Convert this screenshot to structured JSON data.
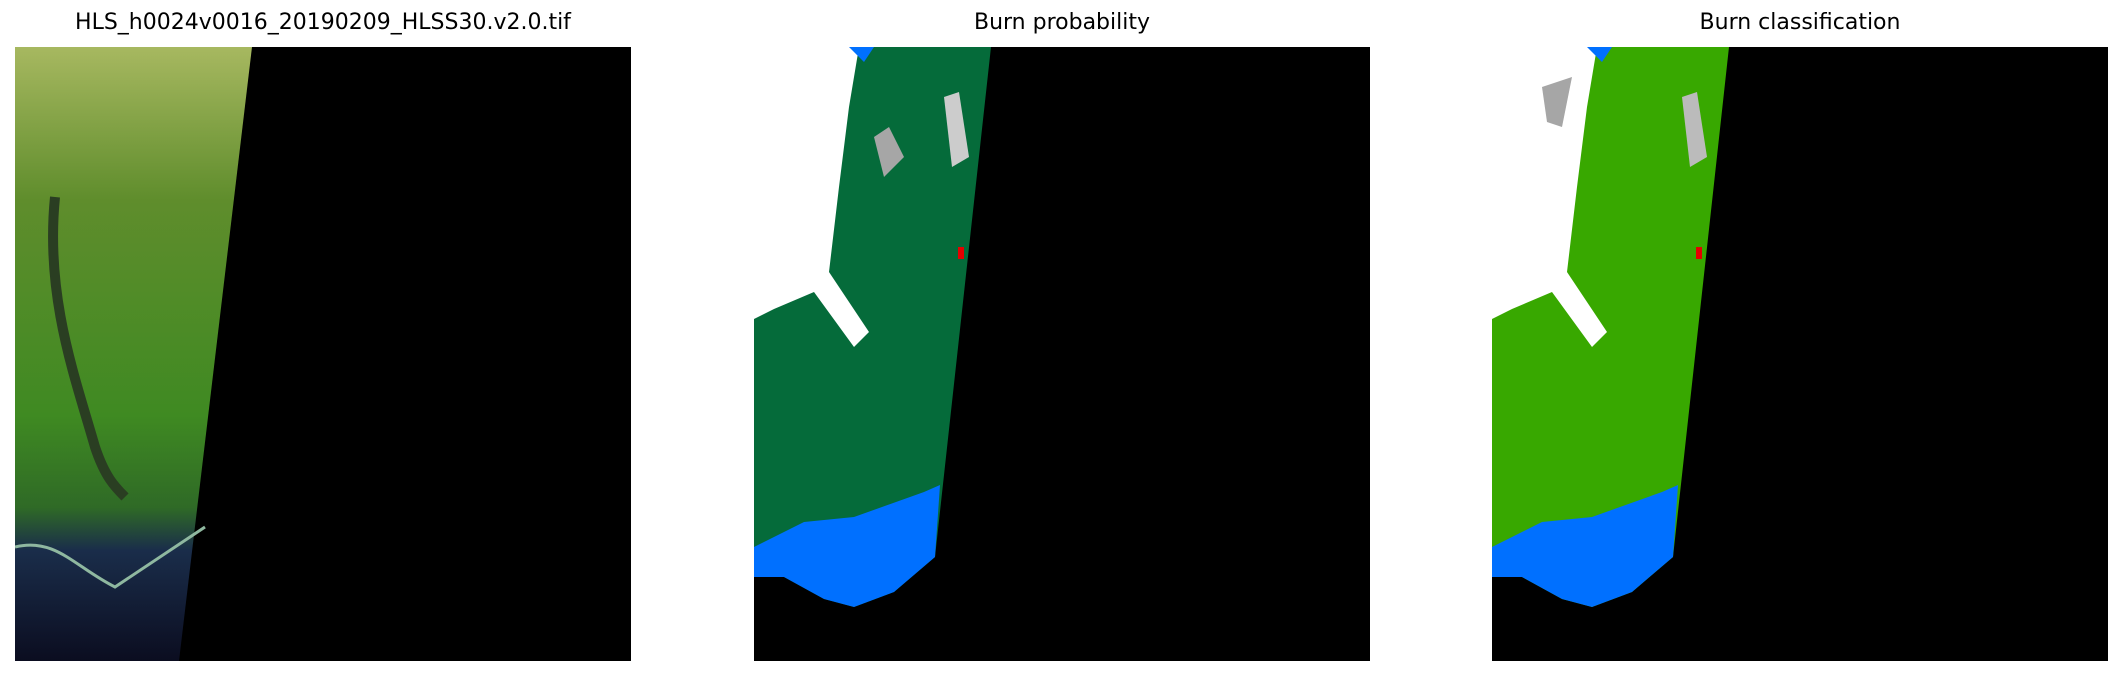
{
  "panels": [
    {
      "title": "HLS_h0024v0016_20190209_HLSS30.v2.0.tif",
      "content": "true-color satellite image"
    },
    {
      "title": "Burn probability",
      "colors": {
        "vegetation": "#056b3a",
        "cloud": "#ffffff",
        "cloud_shadow": "#a6a6a6",
        "water": "#0070ff",
        "burn": "#e60000",
        "nodata": "#000000"
      }
    },
    {
      "title": "Burn classification",
      "colors": {
        "vegetation": "#38a800",
        "cloud": "#ffffff",
        "cloud_shadow": "#a6a6a6",
        "water": "#0070ff",
        "burn": "#e60000",
        "nodata": "#000000"
      }
    }
  ]
}
